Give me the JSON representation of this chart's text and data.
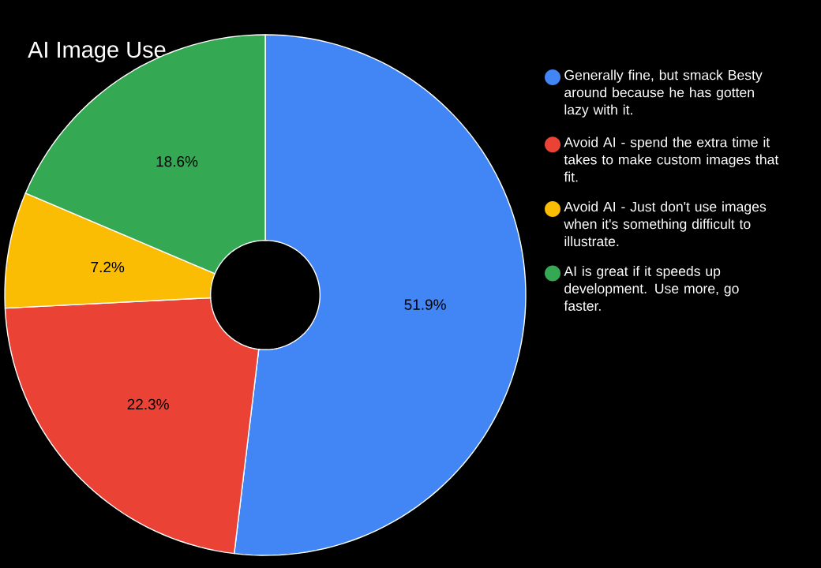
{
  "chart_data": {
    "type": "donut",
    "title": "AI Image Use",
    "categories": [
      "Generally fine, but smack Besty around because he has gotten lazy with it.",
      "Avoid AI - spend the extra time it takes to make custom images that fit.",
      "Avoid AI - Just don't use images when it's something difficult to illustrate.",
      "AI is great if it speeds up development. Use more, go faster."
    ],
    "values": [
      51.9,
      22.3,
      7.2,
      18.6
    ],
    "colors": [
      "#4285f4",
      "#ea4335",
      "#fbbc04",
      "#34a853"
    ],
    "value_labels": [
      "51.9%",
      "22.3%",
      "7.2%",
      "18.6%"
    ],
    "legend": "right"
  }
}
